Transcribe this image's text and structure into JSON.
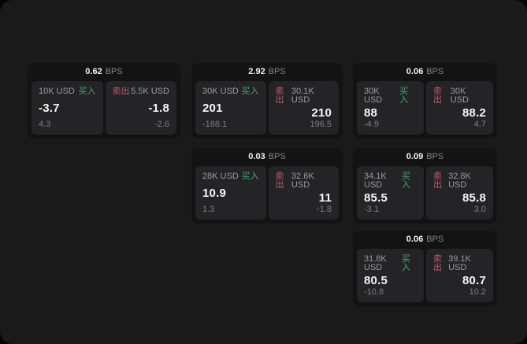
{
  "colors": {
    "buy": "#3fae74",
    "sell": "#c4596d"
  },
  "cards": [
    {
      "row": 1,
      "col": 1,
      "bps_value": "0.62",
      "bps_unit": "BPS",
      "buy": {
        "amount": "10K USD",
        "label": "买入",
        "price": "-3.7",
        "delta": "4.3"
      },
      "sell": {
        "label": "卖出",
        "amount": "5.5K USD",
        "price": "-1.8",
        "delta": "-2.6"
      }
    },
    {
      "row": 1,
      "col": 2,
      "bps_value": "2.92",
      "bps_unit": "BPS",
      "buy": {
        "amount": "30K USD",
        "label": "买入",
        "price": "201",
        "delta": "-188.1"
      },
      "sell": {
        "label": "卖出",
        "amount": "30.1K USD",
        "price": "210",
        "delta": "196.5"
      }
    },
    {
      "row": 1,
      "col": 3,
      "bps_value": "0.06",
      "bps_unit": "BPS",
      "buy": {
        "amount": "30K USD",
        "label": "买入",
        "price": "88",
        "delta": "-4.9"
      },
      "sell": {
        "label": "卖出",
        "amount": "30K USD",
        "price": "88.2",
        "delta": "4.7"
      }
    },
    {
      "row": 2,
      "col": 2,
      "bps_value": "0.03",
      "bps_unit": "BPS",
      "buy": {
        "amount": "28K USD",
        "label": "买入",
        "price": "10.9",
        "delta": "1.3"
      },
      "sell": {
        "label": "卖出",
        "amount": "32.6K USD",
        "price": "11",
        "delta": "-1.8"
      }
    },
    {
      "row": 2,
      "col": 3,
      "bps_value": "0.09",
      "bps_unit": "BPS",
      "buy": {
        "amount": "34.1K USD",
        "label": "买入",
        "price": "85.5",
        "delta": "-3.1"
      },
      "sell": {
        "label": "卖出",
        "amount": "32.8K USD",
        "price": "85.8",
        "delta": "3.0"
      }
    },
    {
      "row": 3,
      "col": 3,
      "bps_value": "0.06",
      "bps_unit": "BPS",
      "buy": {
        "amount": "31.8K USD",
        "label": "买入",
        "price": "80.5",
        "delta": "-10.8"
      },
      "sell": {
        "label": "卖出",
        "amount": "39.1K USD",
        "price": "80.7",
        "delta": "10.2"
      }
    }
  ]
}
